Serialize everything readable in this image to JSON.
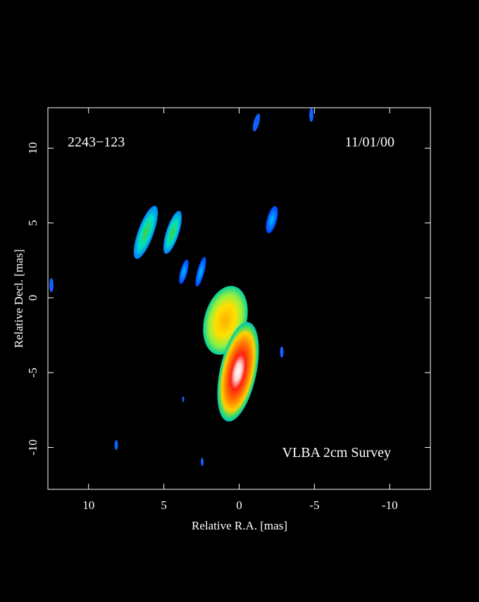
{
  "chart_data": {
    "type": "image",
    "source": "2243−123",
    "date": "11/01/00",
    "annotation": "VLBA 2cm Survey",
    "xlabel": "Relative R.A. [mas]",
    "ylabel": "Relative Decl. [mas]",
    "xlim": [
      12.7,
      -12.7
    ],
    "ylim": [
      -12.8,
      12.7
    ],
    "xticks": [
      10,
      5,
      0,
      -5,
      -10
    ],
    "yticks": [
      -10,
      -5,
      0,
      5,
      10
    ]
  }
}
